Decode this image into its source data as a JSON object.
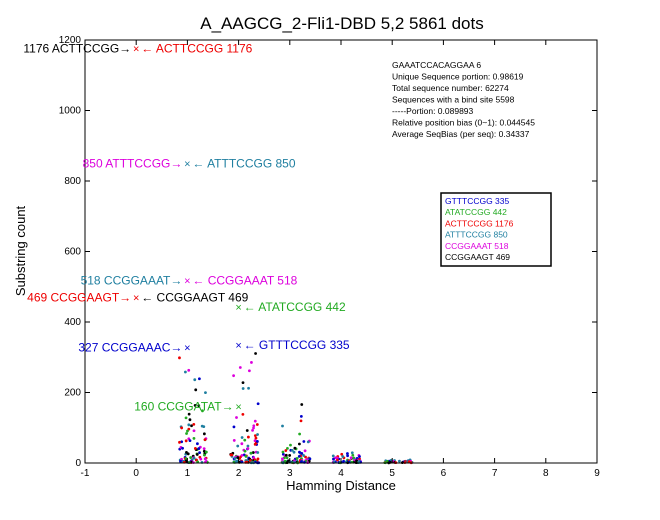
{
  "chart_data": {
    "type": "scatter",
    "title": "A_AAGCG_2-Fli1-DBD 5,2  5861 dots",
    "xlabel": "Hamming Distance",
    "ylabel": "Substring count",
    "xlim": [
      -1,
      9
    ],
    "ylim": [
      0,
      1200
    ],
    "xticks": [
      "-1",
      "0",
      "1",
      "2",
      "3",
      "4",
      "5",
      "6",
      "7",
      "8",
      "9"
    ],
    "yticks": [
      "0",
      "200",
      "400",
      "600",
      "800",
      "1000",
      "1200"
    ],
    "grid": false,
    "info_lines": [
      "GAAATCCACAGGAA 6",
      "Unique Sequence portion:  0.98619",
      "Total sequence number: 62274",
      "Sequences with a bind site 5598",
      "-----Portion: 0.089893",
      "Relative position bias (0~1): 0.044545",
      "Average SeqBias (per seq): 0.34337"
    ],
    "legend_position": "right",
    "legend": [
      {
        "label": "GTTTCCGG 335",
        "color": "#0000cc"
      },
      {
        "label": "ATATCCGG 442",
        "color": "#22aa22"
      },
      {
        "label": "ACTTCCGG 1176",
        "color": "#ee0000"
      },
      {
        "label": "ATTTCCGG 850",
        "color": "#1f7fa0"
      },
      {
        "label": "CCGGAAAT 518",
        "color": "#dd00dd"
      },
      {
        "label": "CCGGAAGT 469",
        "color": "#000000"
      }
    ],
    "annotations": [
      {
        "x": 0,
        "y": 1176,
        "left": "1176 ACTTCCGG",
        "left_color": "#000000",
        "right": "ACTTCCGG 1176",
        "right_color": "#ee0000",
        "marker_color": "#ee0000"
      },
      {
        "x": 1,
        "y": 850,
        "left": "850 ATTTCCGG",
        "left_color": "#dd00dd",
        "right": "ATTTCCGG 850",
        "right_color": "#1f7fa0",
        "marker_color": "#1f7fa0"
      },
      {
        "x": 1,
        "y": 518,
        "left": "518 CCGGAAAT",
        "left_color": "#1f7fa0",
        "right": "CCGGAAAT 518",
        "right_color": "#dd00dd",
        "marker_color": "#dd00dd"
      },
      {
        "x": 0,
        "y": 469,
        "left": "469 CCGGAAGT",
        "left_color": "#ee0000",
        "right": "CCGGAAGT 469",
        "right_color": "#000000",
        "marker_color": "#ee0000"
      },
      {
        "x": 2,
        "y": 442,
        "left": "",
        "left_color": "#22aa22",
        "right": "ATATCCGG 442",
        "right_color": "#22aa22",
        "marker_color": "#22aa22"
      },
      {
        "x": 1,
        "y": 327,
        "left": "327 CCGGAAAC",
        "left_color": "#0000cc",
        "right": "",
        "right_color": "#0000cc",
        "marker_color": "#0000cc"
      },
      {
        "x": 2,
        "y": 335,
        "left": "",
        "left_color": "#0000cc",
        "right": "GTTTCCGG 335",
        "right_color": "#0000cc",
        "marker_color": "#0000cc"
      },
      {
        "x": 2,
        "y": 160,
        "left": "160 CCGGATAT",
        "left_color": "#22aa22",
        "right": "",
        "right_color": "#22aa22",
        "marker_color": "#22aa22"
      }
    ],
    "series": [
      {
        "x": 1,
        "points": [
          300,
          285,
          240,
          210,
          190,
          170,
          150,
          130,
          110,
          95,
          85,
          75,
          65,
          55,
          50,
          42,
          35,
          30,
          25,
          20,
          18,
          15,
          12,
          10,
          8,
          6,
          5,
          4,
          3,
          2
        ]
      },
      {
        "x": 2,
        "points": [
          330,
          280,
          250,
          220,
          180,
          150,
          130,
          110,
          95,
          80,
          70,
          60,
          52,
          45,
          40,
          35,
          30,
          26,
          22,
          19,
          16,
          14,
          12,
          10,
          8,
          7,
          6,
          5,
          4,
          3,
          2,
          2,
          1
        ]
      },
      {
        "x": 3,
        "points": [
          160,
          110,
          80,
          65,
          55,
          45,
          40,
          35,
          30,
          26,
          22,
          19,
          16,
          14,
          12,
          10,
          8,
          7,
          6,
          5,
          4,
          3,
          2,
          2,
          1
        ]
      },
      {
        "x": 4,
        "points": [
          40,
          35,
          30,
          26,
          22,
          18,
          15,
          12,
          10,
          8,
          6,
          5,
          4,
          3,
          2,
          2,
          1
        ]
      },
      {
        "x": 5,
        "points": [
          12,
          10,
          8,
          7,
          6,
          5,
          4,
          3,
          2,
          2,
          1
        ]
      }
    ],
    "dot_colors": [
      "#0000cc",
      "#ee0000",
      "#22aa22",
      "#1f7fa0",
      "#dd00dd",
      "#000000"
    ]
  }
}
